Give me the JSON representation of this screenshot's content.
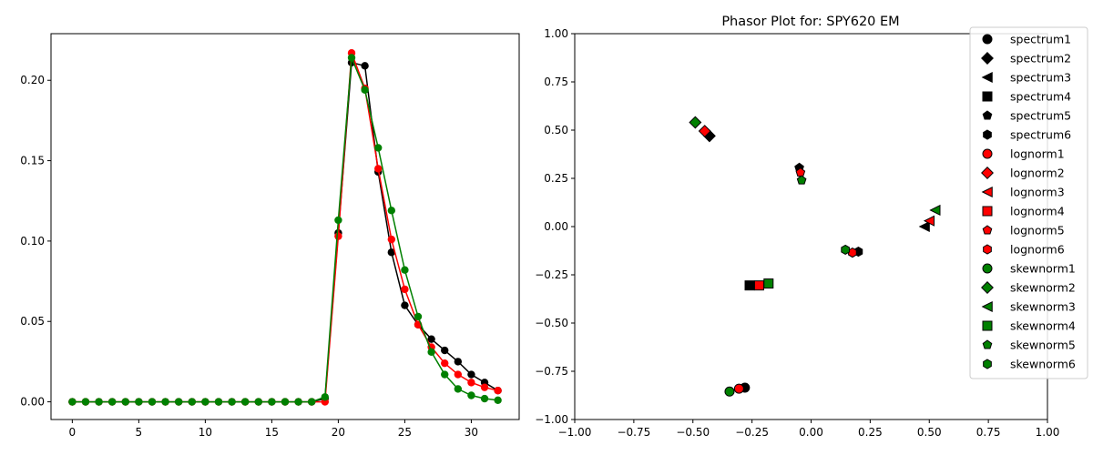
{
  "chart_data": [
    {
      "type": "line",
      "title": "",
      "xlabel": "",
      "ylabel": "",
      "xlim": [
        -1.6,
        33.6
      ],
      "ylim": [
        -0.011,
        0.229
      ],
      "grid": false,
      "xticks": [
        "0",
        "5",
        "10",
        "15",
        "20",
        "25",
        "30"
      ],
      "xtick_values": [
        0,
        5,
        10,
        15,
        20,
        25,
        30
      ],
      "yticks": [
        "0.00",
        "0.05",
        "0.10",
        "0.15",
        "0.20"
      ],
      "ytick_values": [
        0,
        0.05,
        0.1,
        0.15,
        0.2
      ],
      "x": [
        0,
        1,
        2,
        3,
        4,
        5,
        6,
        7,
        8,
        9,
        10,
        11,
        12,
        13,
        14,
        15,
        16,
        17,
        18,
        19,
        20,
        21,
        22,
        23,
        24,
        25,
        26,
        27,
        28,
        29,
        30,
        31,
        32
      ],
      "series": [
        {
          "color": "#000000",
          "values": [
            0,
            0,
            0,
            0,
            0,
            0,
            0,
            0,
            0,
            0,
            0,
            0,
            0,
            0,
            0,
            0,
            0,
            0,
            0,
            0.002,
            0.105,
            0.211,
            0.209,
            0.143,
            0.093,
            0.06,
            0.048,
            0.039,
            0.032,
            0.025,
            0.017,
            0.012,
            0.007
          ]
        },
        {
          "color": "#ff0000",
          "values": [
            0,
            0,
            0,
            0,
            0,
            0,
            0,
            0,
            0,
            0,
            0,
            0,
            0,
            0,
            0,
            0,
            0,
            0,
            0,
            0,
            0.103,
            0.217,
            0.195,
            0.145,
            0.101,
            0.07,
            0.048,
            0.034,
            0.024,
            0.017,
            0.012,
            0.009,
            0.007
          ]
        },
        {
          "color": "#008000",
          "values": [
            0,
            0,
            0,
            0,
            0,
            0,
            0,
            0,
            0,
            0,
            0,
            0,
            0,
            0,
            0,
            0,
            0,
            0,
            0,
            0.003,
            0.113,
            0.214,
            0.194,
            0.158,
            0.119,
            0.082,
            0.053,
            0.031,
            0.017,
            0.008,
            0.004,
            0.002,
            0.001
          ]
        }
      ]
    },
    {
      "type": "scatter",
      "title": "Phasor Plot for: SPY620 EM",
      "xlabel": "",
      "ylabel": "",
      "xlim": [
        -1,
        1
      ],
      "ylim": [
        -1,
        1
      ],
      "grid": false,
      "legend_position": "top-right",
      "xticks": [
        "−1.00",
        "−0.75",
        "−0.50",
        "−0.25",
        "0.00",
        "0.25",
        "0.50",
        "0.75",
        "1.00"
      ],
      "xtick_values": [
        -1,
        -0.75,
        -0.5,
        -0.25,
        0,
        0.25,
        0.5,
        0.75,
        1
      ],
      "yticks": [
        "−1.00",
        "−0.75",
        "−0.50",
        "−0.25",
        "0.00",
        "0.25",
        "0.50",
        "0.75",
        "1.00"
      ],
      "ytick_values": [
        -1,
        -0.75,
        -0.5,
        -0.25,
        0,
        0.25,
        0.5,
        0.75,
        1
      ],
      "series": [
        {
          "name": "spectrum1",
          "color": "#000000",
          "marker": "circle",
          "x": -0.28,
          "y": -0.835
        },
        {
          "name": "spectrum2",
          "color": "#000000",
          "marker": "diamond",
          "x": -0.43,
          "y": 0.47
        },
        {
          "name": "spectrum3",
          "color": "#000000",
          "marker": "triangle-left",
          "x": 0.48,
          "y": 0.0
        },
        {
          "name": "spectrum4",
          "color": "#000000",
          "marker": "square",
          "x": -0.26,
          "y": -0.305
        },
        {
          "name": "spectrum5",
          "color": "#000000",
          "marker": "pentagon",
          "x": -0.05,
          "y": 0.305
        },
        {
          "name": "spectrum6",
          "color": "#000000",
          "marker": "hexagon",
          "x": 0.2,
          "y": -0.13
        },
        {
          "name": "lognorm1",
          "color": "#ff0000",
          "marker": "circle",
          "x": -0.305,
          "y": -0.84
        },
        {
          "name": "lognorm2",
          "color": "#ff0000",
          "marker": "diamond",
          "x": -0.45,
          "y": 0.495
        },
        {
          "name": "lognorm3",
          "color": "#ff0000",
          "marker": "triangle-left",
          "x": 0.5,
          "y": 0.03
        },
        {
          "name": "lognorm4",
          "color": "#ff0000",
          "marker": "square",
          "x": -0.22,
          "y": -0.305
        },
        {
          "name": "lognorm5",
          "color": "#ff0000",
          "marker": "pentagon",
          "x": -0.045,
          "y": 0.28
        },
        {
          "name": "lognorm6",
          "color": "#ff0000",
          "marker": "hexagon",
          "x": 0.175,
          "y": -0.135
        },
        {
          "name": "skewnorm1",
          "color": "#008000",
          "marker": "circle",
          "x": -0.345,
          "y": -0.855
        },
        {
          "name": "skewnorm2",
          "color": "#008000",
          "marker": "diamond",
          "x": -0.49,
          "y": 0.54
        },
        {
          "name": "skewnorm3",
          "color": "#008000",
          "marker": "triangle-left",
          "x": 0.525,
          "y": 0.085
        },
        {
          "name": "skewnorm4",
          "color": "#008000",
          "marker": "square",
          "x": -0.18,
          "y": -0.295
        },
        {
          "name": "skewnorm5",
          "color": "#008000",
          "marker": "pentagon",
          "x": -0.04,
          "y": 0.24
        },
        {
          "name": "skewnorm6",
          "color": "#008000",
          "marker": "hexagon",
          "x": 0.145,
          "y": -0.12
        }
      ]
    }
  ]
}
